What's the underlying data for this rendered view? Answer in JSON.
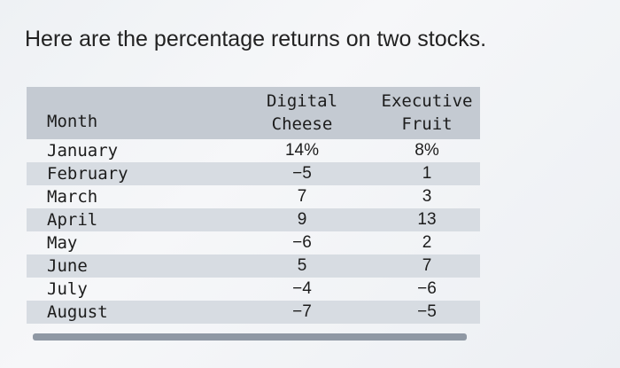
{
  "heading": "Here are the percentage returns on two stocks.",
  "table": {
    "headers": {
      "month": "Month",
      "stock_a_line1": "Digital",
      "stock_a_line2": "Cheese",
      "stock_b_line1": "Executive",
      "stock_b_line2": "Fruit"
    },
    "rows": [
      {
        "month": "January",
        "a": "14%",
        "b": "8%"
      },
      {
        "month": "February",
        "a": "−5",
        "b": "1"
      },
      {
        "month": "March",
        "a": "7",
        "b": "3"
      },
      {
        "month": "April",
        "a": "9",
        "b": "13"
      },
      {
        "month": "May",
        "a": "−6",
        "b": "2"
      },
      {
        "month": "June",
        "a": "5",
        "b": "7"
      },
      {
        "month": "July",
        "a": "−4",
        "b": "−6"
      },
      {
        "month": "August",
        "a": "−7",
        "b": "−5"
      }
    ]
  }
}
